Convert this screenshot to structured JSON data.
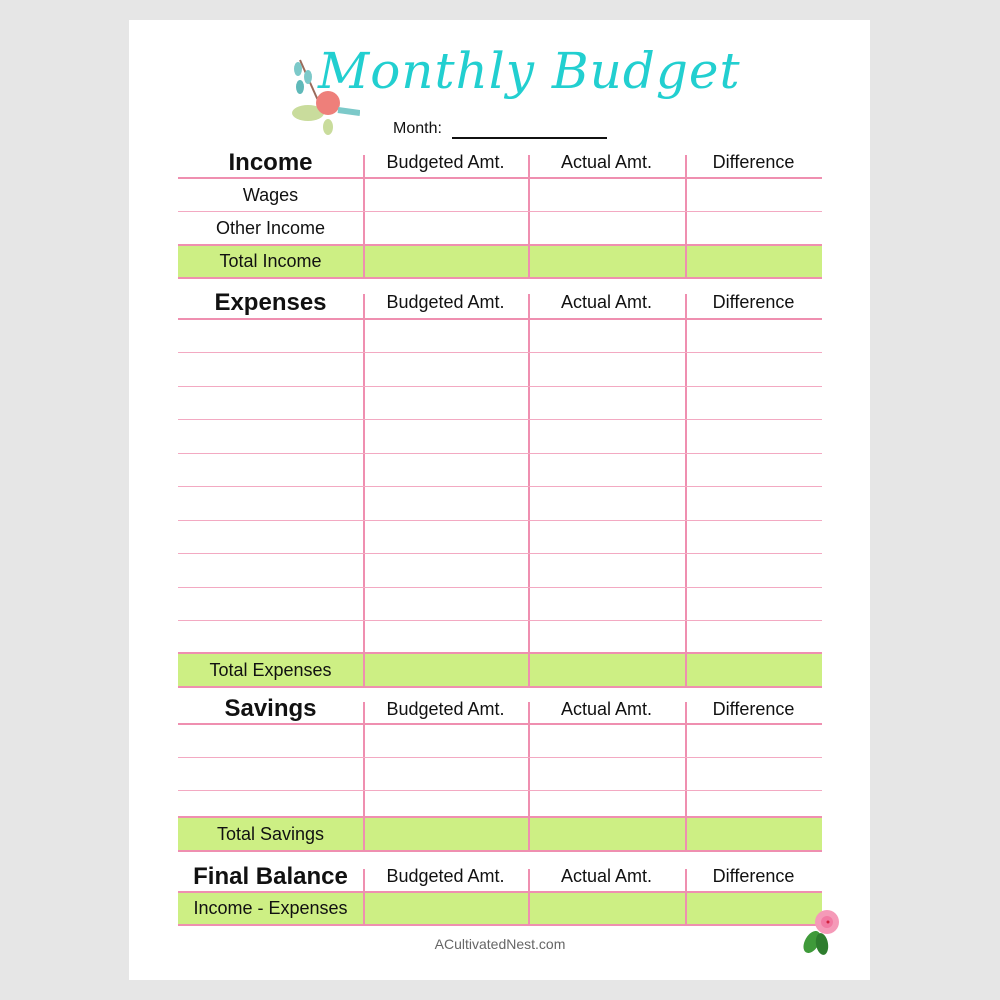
{
  "title": "Monthly Budget",
  "month_label": "Month:",
  "colors": {
    "title": "#22cfd0",
    "grid": "#ef8fb0",
    "total_fill": "#cdef84"
  },
  "sections": [
    {
      "title": "Income",
      "columns": [
        "Budgeted Amt.",
        "Actual Amt.",
        "Difference"
      ],
      "rows": [
        "Wages",
        "Other Income"
      ],
      "total": "Total Income"
    },
    {
      "title": "Expenses",
      "columns": [
        "Budgeted Amt.",
        "Actual Amt.",
        "Difference"
      ],
      "rows": [
        "",
        "",
        "",
        "",
        "",
        "",
        "",
        "",
        "",
        ""
      ],
      "total": "Total Expenses"
    },
    {
      "title": "Savings",
      "columns": [
        "Budgeted Amt.",
        "Actual Amt.",
        "Difference"
      ],
      "rows": [
        "",
        "",
        ""
      ],
      "total": "Total Savings"
    },
    {
      "title": "Final Balance",
      "columns": [
        "Budgeted Amt.",
        "Actual Amt.",
        "Difference"
      ],
      "rows": [],
      "total": "Income - Expenses"
    }
  ],
  "footer": "ACultivatedNest.com"
}
